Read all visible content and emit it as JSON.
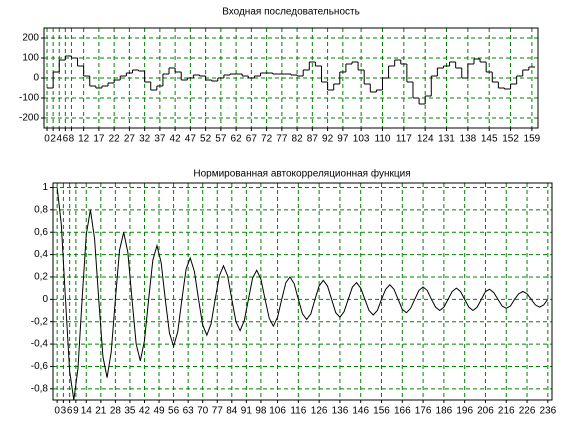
{
  "chart_data": [
    {
      "type": "line",
      "step": true,
      "title": "Входная последовательность",
      "color": "#000000",
      "grid": true,
      "grid_color": "#008000",
      "x": [
        0,
        2,
        4,
        6,
        8,
        10,
        12,
        14,
        16,
        18,
        20,
        22,
        24,
        26,
        28,
        30,
        32,
        34,
        36,
        38,
        40,
        42,
        44,
        46,
        48,
        50,
        52,
        54,
        56,
        58,
        60,
        62,
        64,
        66,
        68,
        70,
        72,
        74,
        76,
        78,
        80,
        82,
        84,
        86,
        88,
        90,
        92,
        94,
        96,
        98,
        100,
        102,
        104,
        106,
        108,
        110,
        112,
        114,
        116,
        118,
        120,
        122,
        124,
        126,
        128,
        130,
        132,
        134,
        136,
        138,
        140,
        142,
        144,
        146,
        148,
        150,
        152,
        154,
        156,
        158
      ],
      "values": [
        -50,
        30,
        90,
        110,
        100,
        60,
        10,
        -40,
        -50,
        -40,
        -25,
        -10,
        10,
        25,
        40,
        35,
        -20,
        -60,
        -40,
        20,
        50,
        30,
        -10,
        0,
        15,
        10,
        -10,
        -15,
        0,
        15,
        20,
        20,
        10,
        0,
        10,
        25,
        25,
        20,
        20,
        20,
        15,
        10,
        40,
        80,
        60,
        -20,
        -60,
        -30,
        30,
        70,
        80,
        40,
        -30,
        -70,
        -60,
        0,
        60,
        90,
        70,
        -20,
        -100,
        -130,
        -90,
        10,
        50,
        60,
        80,
        50,
        0,
        70,
        95,
        80,
        30,
        -20,
        -50,
        -55,
        -30,
        10,
        40,
        55
      ],
      "xlim": [
        -1,
        161
      ],
      "ylim": [
        -250,
        250
      ],
      "xticks": [
        0,
        2,
        4,
        6,
        8,
        12,
        17,
        22,
        27,
        32,
        37,
        42,
        47,
        52,
        57,
        62,
        67,
        72,
        77,
        82,
        87,
        92,
        97,
        103,
        110,
        117,
        124,
        131,
        138,
        145,
        152,
        159
      ],
      "yticks": [
        -200,
        -100,
        0,
        100,
        200
      ]
    },
    {
      "type": "line",
      "title": "Нормированная автокорреляционная функция",
      "color": "#000000",
      "grid": true,
      "grid_color": "#008000",
      "x": [
        0,
        2,
        4,
        6,
        8,
        10,
        12,
        14,
        16,
        18,
        20,
        22,
        24,
        26,
        28,
        30,
        32,
        34,
        36,
        38,
        40,
        42,
        44,
        46,
        48,
        50,
        52,
        54,
        56,
        58,
        60,
        62,
        64,
        66,
        68,
        70,
        72,
        74,
        76,
        78,
        80,
        82,
        84,
        86,
        88,
        90,
        92,
        94,
        96,
        98,
        100,
        102,
        104,
        106,
        108,
        110,
        112,
        114,
        116,
        118,
        120,
        122,
        124,
        126,
        128,
        130,
        132,
        134,
        136,
        138,
        140,
        142,
        144,
        146,
        148,
        150,
        152,
        154,
        156,
        158,
        160,
        162,
        164,
        166,
        168,
        170,
        172,
        174,
        176,
        178,
        180,
        182,
        184,
        186,
        188,
        190,
        192,
        194,
        196,
        198,
        200,
        202,
        204,
        206,
        208,
        210,
        212,
        214,
        216,
        218,
        220,
        222,
        224,
        226,
        228,
        230,
        232,
        234,
        236
      ],
      "values": [
        1,
        0.67,
        0,
        -0.64,
        -0.9,
        -0.62,
        0,
        0.58,
        0.8,
        0.54,
        0,
        -0.51,
        -0.7,
        -0.47,
        0,
        0.44,
        0.6,
        0.42,
        0,
        -0.4,
        -0.55,
        -0.37,
        0,
        0.35,
        0.48,
        0.33,
        0,
        -0.3,
        -0.42,
        -0.29,
        0,
        0.27,
        0.37,
        0.25,
        0,
        -0.23,
        -0.32,
        -0.22,
        0,
        0.21,
        0.3,
        0.21,
        0,
        -0.2,
        -0.28,
        -0.19,
        0,
        0.19,
        0.26,
        0.18,
        0,
        -0.17,
        -0.24,
        -0.16,
        0,
        0.15,
        0.2,
        0.14,
        0,
        -0.13,
        -0.18,
        -0.13,
        0,
        0.12,
        0.17,
        0.12,
        0,
        -0.12,
        -0.16,
        -0.11,
        0,
        0.11,
        0.15,
        0.1,
        0,
        -0.1,
        -0.14,
        -0.1,
        0,
        0.09,
        0.13,
        0.09,
        0,
        -0.09,
        -0.12,
        -0.08,
        0,
        0.08,
        0.11,
        0.08,
        0,
        -0.07,
        -0.1,
        -0.07,
        0,
        0.07,
        0.1,
        0.07,
        0,
        -0.07,
        -0.1,
        -0.07,
        0,
        0.07,
        0.09,
        0.06,
        0,
        -0.06,
        -0.08,
        -0.06,
        0,
        0.05,
        0.07,
        0.05,
        0,
        -0.05,
        -0.07,
        -0.05,
        0
      ],
      "xlim": [
        -2,
        238
      ],
      "ylim": [
        -0.9,
        1.04
      ],
      "xticks": [
        0,
        3,
        6,
        9,
        14,
        21,
        28,
        35,
        42,
        49,
        56,
        63,
        70,
        77,
        84,
        91,
        98,
        106,
        116,
        126,
        136,
        146,
        156,
        166,
        176,
        186,
        196,
        206,
        216,
        226,
        236
      ],
      "yticks": [
        {
          "value": -0.8,
          "label": "-0,8"
        },
        {
          "value": -0.6,
          "label": "-0,6"
        },
        {
          "value": -0.4,
          "label": "-0,4"
        },
        {
          "value": -0.2,
          "label": "-0,2"
        },
        0,
        {
          "value": 0.2,
          "label": "0,2"
        },
        {
          "value": 0.4,
          "label": "0,4"
        },
        {
          "value": 0.6,
          "label": "0,6"
        },
        {
          "value": 0.8,
          "label": "0,8"
        },
        1
      ]
    }
  ]
}
